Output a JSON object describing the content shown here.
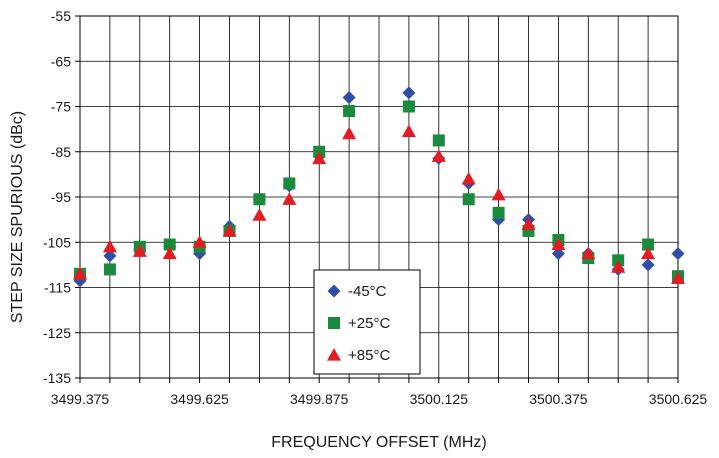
{
  "chart_data": {
    "type": "scatter",
    "xlabel": "FREQUENCY OFFSET (MHz)",
    "ylabel": "STEP SIZE SPURIOUS (dBc)",
    "xlim": [
      3499.375,
      3500.625
    ],
    "ylim": [
      -135,
      -55
    ],
    "x_ticks": [
      "3499.375",
      "3499.625",
      "3499.875",
      "3500.125",
      "3500.375",
      "3500.625"
    ],
    "y_ticks": [
      "-55",
      "-65",
      "-75",
      "-85",
      "-95",
      "-105",
      "-115",
      "-125",
      "-135"
    ],
    "grid": true,
    "legend_position": "bottom-center",
    "series": [
      {
        "name": "-45°C",
        "marker": "diamond",
        "color": "#2f4fa6",
        "points": [
          [
            3499.375,
            -113.5
          ],
          [
            3499.4375,
            -108
          ],
          [
            3499.5,
            -106.5
          ],
          [
            3499.5625,
            -106
          ],
          [
            3499.625,
            -107.5
          ],
          [
            3499.6875,
            -101.5
          ],
          [
            3499.75,
            -95.5
          ],
          [
            3499.8125,
            -92.5
          ],
          [
            3499.875,
            -86
          ],
          [
            3499.9375,
            -73
          ],
          [
            3500.0625,
            -72
          ],
          [
            3500.125,
            -86.5
          ],
          [
            3500.1875,
            -92
          ],
          [
            3500.25,
            -100
          ],
          [
            3500.3125,
            -100
          ],
          [
            3500.375,
            -107.5
          ],
          [
            3500.4375,
            -107.5
          ],
          [
            3500.5,
            -111
          ],
          [
            3500.5625,
            -110
          ],
          [
            3500.625,
            -107.5
          ]
        ]
      },
      {
        "name": "+25°C",
        "marker": "square",
        "color": "#1a8a3c",
        "points": [
          [
            3499.375,
            -112
          ],
          [
            3499.4375,
            -111
          ],
          [
            3499.5,
            -106
          ],
          [
            3499.5625,
            -105.5
          ],
          [
            3499.625,
            -106
          ],
          [
            3499.6875,
            -102.5
          ],
          [
            3499.75,
            -95.5
          ],
          [
            3499.8125,
            -92
          ],
          [
            3499.875,
            -85
          ],
          [
            3499.9375,
            -76
          ],
          [
            3500.0625,
            -75
          ],
          [
            3500.125,
            -82.5
          ],
          [
            3500.1875,
            -95.5
          ],
          [
            3500.25,
            -98.5
          ],
          [
            3500.3125,
            -102.5
          ],
          [
            3500.375,
            -104.5
          ],
          [
            3500.4375,
            -108.5
          ],
          [
            3500.5,
            -109
          ],
          [
            3500.5625,
            -105.5
          ],
          [
            3500.625,
            -112.5
          ]
        ]
      },
      {
        "name": "+85°C",
        "marker": "triangle",
        "color": "#e31b23",
        "points": [
          [
            3499.375,
            -112
          ],
          [
            3499.4375,
            -106
          ],
          [
            3499.5,
            -107
          ],
          [
            3499.5625,
            -107.5
          ],
          [
            3499.625,
            -105
          ],
          [
            3499.6875,
            -102.5
          ],
          [
            3499.75,
            -99
          ],
          [
            3499.8125,
            -95.5
          ],
          [
            3499.875,
            -86.5
          ],
          [
            3499.9375,
            -81
          ],
          [
            3500.0625,
            -80.5
          ],
          [
            3500.125,
            -86
          ],
          [
            3500.1875,
            -91
          ],
          [
            3500.25,
            -94.5
          ],
          [
            3500.3125,
            -101
          ],
          [
            3500.375,
            -105.5
          ],
          [
            3500.4375,
            -107.5
          ],
          [
            3500.5,
            -110.5
          ],
          [
            3500.5625,
            -107.5
          ],
          [
            3500.625,
            -113
          ]
        ]
      }
    ]
  }
}
